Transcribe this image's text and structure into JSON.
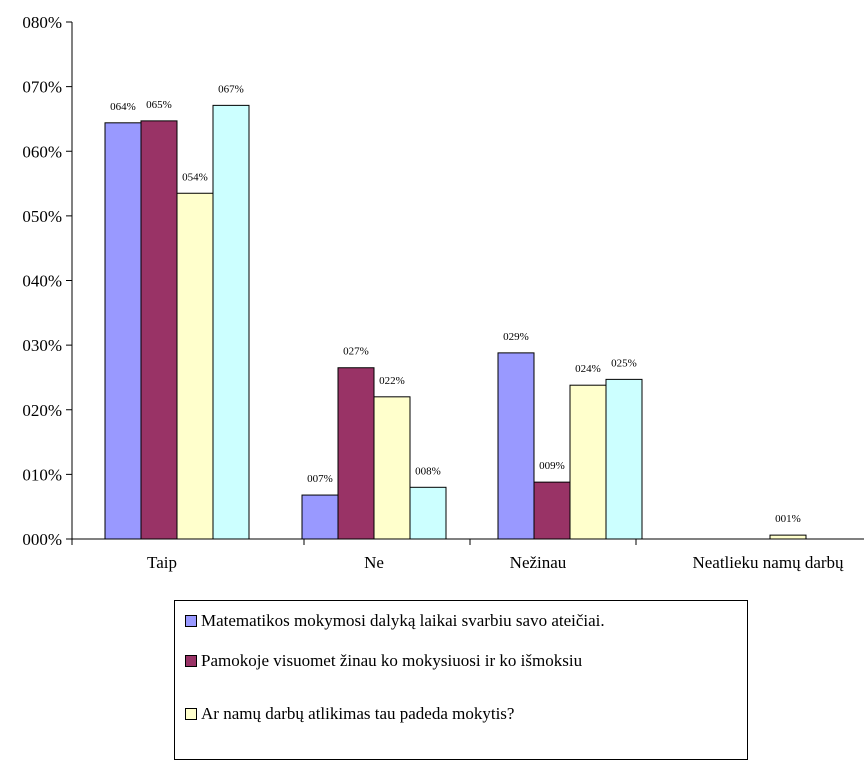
{
  "chart_data": {
    "type": "bar",
    "categories": [
      "Taip",
      "Ne",
      "Nežinau",
      "Neatlieku namų darbų"
    ],
    "series": [
      {
        "name": "Matematikos mokymosi dalyką laikai svarbiu savo ateičiai.",
        "color": "#9999ff",
        "values": [
          64.4,
          6.8,
          28.8,
          null
        ],
        "labels": [
          "064%",
          "007%",
          "029%",
          ""
        ]
      },
      {
        "name": "Pamokoje visuomet žinau ko mokysiuosi ir ko išmoksiu",
        "color": "#993366",
        "values": [
          64.7,
          26.5,
          8.8,
          null
        ],
        "labels": [
          "065%",
          "027%",
          "009%",
          ""
        ]
      },
      {
        "name": "Ar namų darbų atlikimas tau padeda mokytis?",
        "color": "#ffffcc",
        "values": [
          53.5,
          22.0,
          23.8,
          0.6
        ],
        "labels": [
          "054%",
          "022%",
          "024%",
          "001%"
        ]
      },
      {
        "name": "",
        "color": "#ccffff",
        "values": [
          67.1,
          8.0,
          24.7,
          null
        ],
        "labels": [
          "067%",
          "008%",
          "025%",
          ""
        ]
      }
    ],
    "yticks": [
      "000%",
      "010%",
      "020%",
      "030%",
      "040%",
      "050%",
      "060%",
      "070%",
      "080%"
    ],
    "ylim": [
      0,
      80
    ],
    "xlabel": "",
    "ylabel": "",
    "grid": false,
    "legend_position": "bottom"
  }
}
